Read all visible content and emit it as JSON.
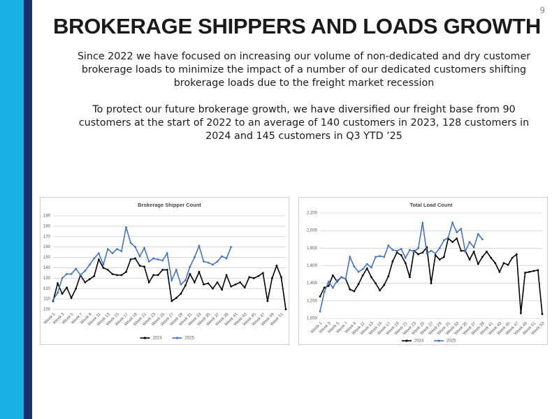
{
  "page_number": "9",
  "title": "BROKERAGE SHIPPERS AND LOADS GROWTH",
  "paragraphs": [
    "Since 2022 we have focused on increasing our volume of non-dedicated and dry customer brokerage loads to minimize the impact of a number of our dedicated customers shifting brokerage loads due to the freight market recession",
    "To protect our future brokerage growth, we have diversified our freight base from 90 customers at the start of 2022 to an average of 140 customers in 2023, 128 customers in 2024 and 145 customers in Q3 YTD ’25"
  ],
  "chart_data": [
    {
      "type": "line",
      "title": "Brokerage Shipper Count",
      "categories": [
        "Week 1",
        null,
        "Week 3",
        null,
        "Week 5",
        null,
        "Week 7",
        null,
        "Week 9",
        null,
        "Week 11",
        null,
        "Week 13",
        null,
        "Week 15",
        null,
        "Week 17",
        null,
        "Week 19",
        null,
        "Week 21",
        null,
        "Week 23",
        null,
        "Week 25",
        null,
        "Week 27",
        null,
        "Week 29",
        null,
        "Week 31",
        null,
        "Week 33",
        null,
        "Week 35",
        null,
        "Week 37",
        null,
        "Week 39",
        null,
        "Week 41",
        null,
        "Week 43",
        null,
        "Week 45",
        null,
        "Week 47",
        null,
        "Week 49",
        null,
        "Week 51",
        null
      ],
      "series": [
        {
          "name": "2024",
          "color": "#000000",
          "values": [
            108,
            125,
            115,
            121,
            111,
            120,
            133,
            126,
            129,
            132,
            148,
            140,
            138,
            134,
            133,
            133,
            136,
            148,
            149,
            142,
            141,
            126,
            133,
            133,
            138,
            138,
            108,
            111,
            115,
            123,
            134,
            126,
            136,
            124,
            125,
            120,
            126,
            119,
            133,
            122,
            124,
            126,
            121,
            131,
            130,
            132,
            135,
            108,
            130,
            142,
            131,
            100
          ]
        },
        {
          "name": "2025",
          "color": "#4472c4",
          "values": [
            109,
            116,
            130,
            134,
            134,
            139,
            133,
            137,
            143,
            149,
            154,
            143,
            158,
            154,
            158,
            156,
            179,
            164,
            160,
            151,
            159,
            146,
            149,
            148,
            147,
            154,
            128,
            138,
            124,
            128,
            141,
            150,
            161,
            146,
            145,
            143,
            146,
            151,
            149,
            160,
            null,
            null,
            null,
            null,
            null,
            null,
            null,
            null,
            null,
            null,
            null,
            null
          ]
        }
      ],
      "ylim": [
        100,
        190
      ],
      "yticks": [
        100,
        110,
        120,
        130,
        140,
        150,
        160,
        170,
        180,
        190
      ],
      "grid": true,
      "legend": "bottom"
    },
    {
      "type": "line",
      "title": "Total Load Count",
      "categories": [
        "Week 1",
        null,
        "Week 3",
        null,
        "Week 5",
        null,
        "Week 7",
        null,
        "Week 9",
        null,
        "Week 11",
        null,
        "Week 13",
        null,
        "Week 15",
        null,
        "Week 17",
        null,
        "Week 19",
        null,
        "Week 21",
        null,
        "Week 23",
        null,
        "Week 25",
        null,
        "Week 27",
        null,
        "Week 29",
        null,
        "Week 31",
        null,
        "Week 33",
        null,
        "Week 35",
        null,
        "Week 37",
        null,
        "Week 39",
        null,
        "Week 41",
        null,
        "Week 43",
        null,
        "Week 45",
        null,
        "Week 47",
        null,
        "Week 49",
        null,
        "Week 51",
        null,
        "Week 53"
      ],
      "series": [
        {
          "name": "2024",
          "color": "#000000",
          "values": [
            1250,
            1350,
            1370,
            1490,
            1420,
            1470,
            1450,
            1330,
            1310,
            1390,
            1490,
            1570,
            1470,
            1400,
            1320,
            1380,
            1480,
            1650,
            1750,
            1720,
            1630,
            1470,
            1770,
            1730,
            1750,
            1810,
            1400,
            1720,
            1670,
            1700,
            1910,
            1870,
            1910,
            1770,
            1770,
            1670,
            1760,
            1620,
            1700,
            1760,
            1690,
            1630,
            1530,
            1630,
            1610,
            1690,
            1730,
            1060,
            1520,
            1530,
            1540,
            1550,
            1050
          ]
        },
        {
          "name": "2025",
          "color": "#4472c4",
          "values": [
            1080,
            1300,
            1420,
            1350,
            1430,
            1470,
            1450,
            1700,
            1590,
            1530,
            1560,
            1620,
            1580,
            1700,
            1710,
            1700,
            1830,
            1780,
            1770,
            1790,
            1690,
            1780,
            1760,
            1800,
            2090,
            1740,
            1770,
            1740,
            1800,
            1890,
            1920,
            2090,
            1980,
            2020,
            1760,
            1870,
            1810,
            1960,
            1900,
            null,
            null,
            null,
            null,
            null,
            null,
            null,
            null,
            null,
            null,
            null,
            null,
            null,
            null
          ]
        }
      ],
      "ylim": [
        1000,
        2200
      ],
      "yticks": [
        {
          "value": 1000,
          "label": "1,000"
        },
        {
          "value": 1200,
          "label": "1,200"
        },
        {
          "value": 1400,
          "label": "1,400"
        },
        {
          "value": 1600,
          "label": "1,600"
        },
        {
          "value": 1800,
          "label": "1,800"
        },
        {
          "value": 2000,
          "label": "2,000"
        },
        {
          "value": 2200,
          "label": "2,200"
        }
      ],
      "grid": true,
      "legend": "bottom"
    }
  ]
}
